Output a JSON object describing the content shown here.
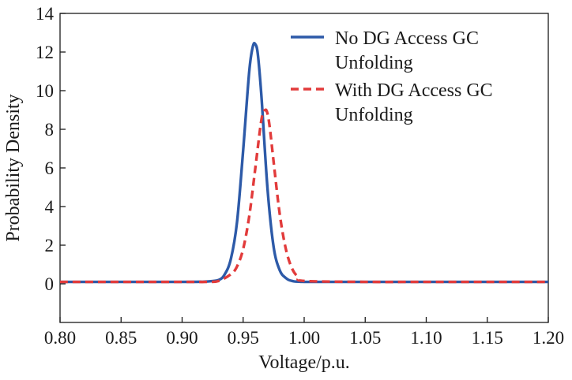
{
  "chart_data": {
    "type": "line",
    "title": "",
    "xlabel": "Voltage/p.u.",
    "ylabel": "Probability Density",
    "xlim": [
      0.8,
      1.2
    ],
    "ylim": [
      -2,
      14
    ],
    "x_ticks": [
      "0.80",
      "0.85",
      "0.90",
      "0.95",
      "1.00",
      "1.05",
      "1.10",
      "1.15",
      "1.20"
    ],
    "y_ticks": [
      "0",
      "2",
      "4",
      "6",
      "8",
      "10",
      "12",
      "14"
    ],
    "grid": false,
    "legend_position": "top-right",
    "series": [
      {
        "name": "No DG Access GC Unfolding",
        "color": "#2d5aa8",
        "line_style": "solid",
        "x": [
          0.8,
          0.9,
          0.92,
          0.93,
          0.935,
          0.94,
          0.945,
          0.95,
          0.955,
          0.958,
          0.96,
          0.962,
          0.965,
          0.97,
          0.975,
          0.98,
          0.985,
          0.99,
          1.0,
          1.05,
          1.1,
          1.15,
          1.2
        ],
        "y": [
          0.1,
          0.1,
          0.12,
          0.2,
          0.5,
          1.3,
          3.2,
          6.9,
          11.0,
          12.3,
          12.4,
          11.9,
          9.7,
          4.9,
          1.9,
          0.7,
          0.3,
          0.15,
          0.1,
          0.1,
          0.1,
          0.1,
          0.1
        ]
      },
      {
        "name": "With DG Access GC Unfolding",
        "color": "#e23b3b",
        "line_style": "dashed",
        "x": [
          0.8,
          0.9,
          0.92,
          0.93,
          0.94,
          0.945,
          0.95,
          0.955,
          0.96,
          0.965,
          0.968,
          0.97,
          0.972,
          0.975,
          0.98,
          0.985,
          0.99,
          0.995,
          1.0,
          1.05,
          1.1,
          1.15,
          1.2
        ],
        "y": [
          0.1,
          0.1,
          0.1,
          0.15,
          0.5,
          0.9,
          1.8,
          3.5,
          6.0,
          8.5,
          9.0,
          8.8,
          8.0,
          6.3,
          3.6,
          1.8,
          0.8,
          0.35,
          0.15,
          0.1,
          0.1,
          0.1,
          0.1
        ]
      }
    ],
    "legend_lines": [
      [
        "No DG Access GC",
        "Unfolding"
      ],
      [
        "With DG Access GC",
        "Unfolding"
      ]
    ]
  }
}
